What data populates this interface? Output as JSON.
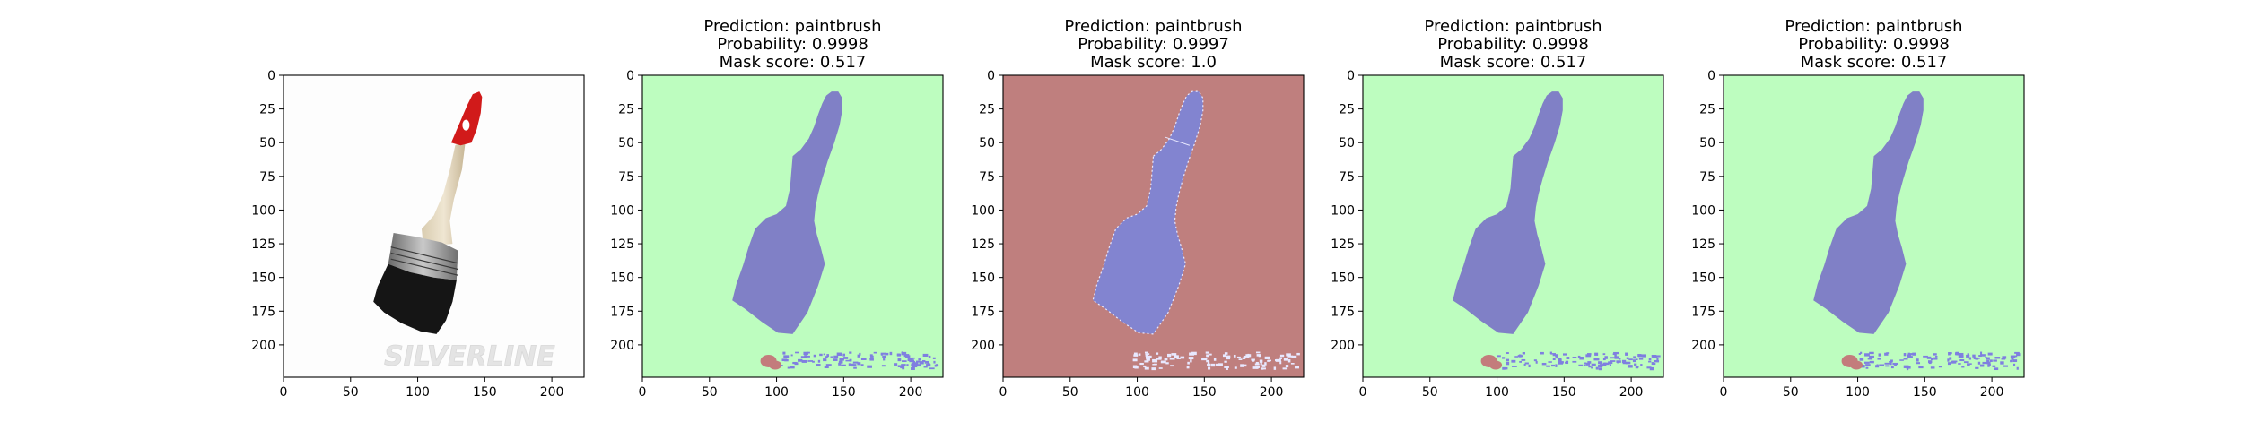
{
  "figure": {
    "panels": [
      {
        "id": "original",
        "title": [],
        "kind": "photo",
        "photo_label": "SILVERLINE"
      },
      {
        "id": "mask-1",
        "title": [
          "Prediction: paintbrush",
          "Probability: 0.9998",
          "Mask score: 0.517"
        ],
        "kind": "mask",
        "background": "#bdfdbf",
        "object_color": "#8080c6",
        "specks_color": "#7f7fe0",
        "blob_color": "#c37c7c"
      },
      {
        "id": "mask-2",
        "title": [
          "Prediction: paintbrush",
          "Probability: 0.9997",
          "Mask score: 1.0"
        ],
        "kind": "mask",
        "background": "#bf7f7e",
        "object_color": "#8284d0",
        "specks_color": "#e8e8ff",
        "blob_color": null
      },
      {
        "id": "mask-3",
        "title": [
          "Prediction: paintbrush",
          "Probability: 0.9998",
          "Mask score: 0.517"
        ],
        "kind": "mask",
        "background": "#bdfdbf",
        "object_color": "#8080c6",
        "specks_color": "#7f7fe0",
        "blob_color": "#c37c7c"
      },
      {
        "id": "mask-4",
        "title": [
          "Prediction: paintbrush",
          "Probability: 0.9998",
          "Mask score: 0.517"
        ],
        "kind": "mask",
        "background": "#bdfdbf",
        "object_color": "#8080c6",
        "specks_color": "#7f7fe0",
        "blob_color": "#c37c7c"
      }
    ]
  },
  "chart_data": {
    "type": "heatmap",
    "image_extent": {
      "xlim": [
        0,
        224
      ],
      "ylim": [
        224,
        0
      ]
    },
    "x_ticks": [
      0,
      50,
      100,
      150,
      200
    ],
    "y_ticks": [
      0,
      25,
      50,
      75,
      100,
      125,
      150,
      175,
      200
    ],
    "panels": [
      {
        "prediction": "",
        "probability": null,
        "mask_score": null
      },
      {
        "prediction": "paintbrush",
        "probability": 0.9998,
        "mask_score": 0.517
      },
      {
        "prediction": "paintbrush",
        "probability": 0.9997,
        "mask_score": 1.0
      },
      {
        "prediction": "paintbrush",
        "probability": 0.9998,
        "mask_score": 0.517
      },
      {
        "prediction": "paintbrush",
        "probability": 0.9998,
        "mask_score": 0.517
      }
    ],
    "brush_outline": [
      [
        112,
        60
      ],
      [
        118,
        55
      ],
      [
        124,
        47
      ],
      [
        128,
        38
      ],
      [
        131,
        29
      ],
      [
        134,
        21
      ],
      [
        137,
        15
      ],
      [
        141,
        12
      ],
      [
        146,
        12
      ],
      [
        149,
        17
      ],
      [
        149,
        26
      ],
      [
        147,
        37
      ],
      [
        143,
        50
      ],
      [
        138,
        64
      ],
      [
        134,
        77
      ],
      [
        131,
        88
      ],
      [
        129,
        98
      ],
      [
        128,
        108
      ],
      [
        130,
        118
      ],
      [
        133,
        128
      ],
      [
        136,
        140
      ],
      [
        131,
        156
      ],
      [
        123,
        176
      ],
      [
        112,
        192
      ],
      [
        101,
        191
      ],
      [
        89,
        183
      ],
      [
        76,
        173
      ],
      [
        67,
        167
      ],
      [
        70,
        155
      ],
      [
        75,
        141
      ],
      [
        79,
        128
      ],
      [
        84,
        114
      ],
      [
        92,
        106
      ],
      [
        100,
        103
      ],
      [
        107,
        97
      ],
      [
        110,
        84
      ],
      [
        111,
        72
      ]
    ],
    "grid": false,
    "legend": "none"
  }
}
